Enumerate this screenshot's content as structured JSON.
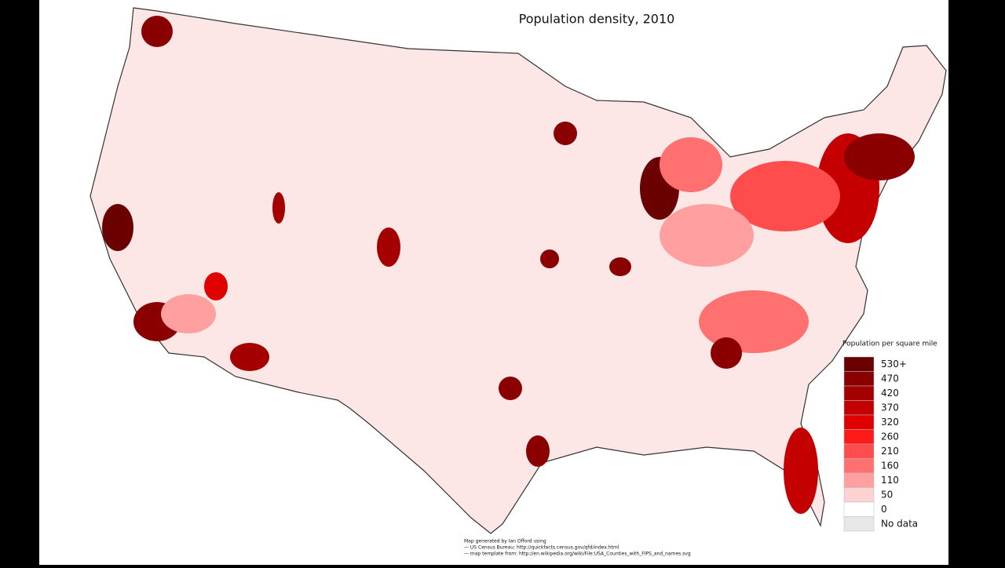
{
  "title": "Population density, 2010",
  "legend": {
    "title": "Population per square mile",
    "items": [
      {
        "label": "530+",
        "color": "#6b0000"
      },
      {
        "label": "470",
        "color": "#8a0000"
      },
      {
        "label": "420",
        "color": "#a50000"
      },
      {
        "label": "370",
        "color": "#c40000"
      },
      {
        "label": "320",
        "color": "#e00000"
      },
      {
        "label": "260",
        "color": "#ff1a1a"
      },
      {
        "label": "210",
        "color": "#ff4d4d"
      },
      {
        "label": "160",
        "color": "#ff7070"
      },
      {
        "label": "110",
        "color": "#ff9f9f"
      },
      {
        "label": "50",
        "color": "#ffd2d2"
      },
      {
        "label": "0",
        "color": "#ffffff"
      },
      {
        "label": "No data",
        "color": "#e8e8e8"
      }
    ]
  },
  "credits": [
    "Map generated by Ian Offord using",
    "— US Census Bureau: http://quickfacts.census.gov/qfd/index.html",
    "— map template from: http://en.wikipedia.org/wiki/File:USA_Counties_with_FIPS_and_names.svg"
  ]
}
